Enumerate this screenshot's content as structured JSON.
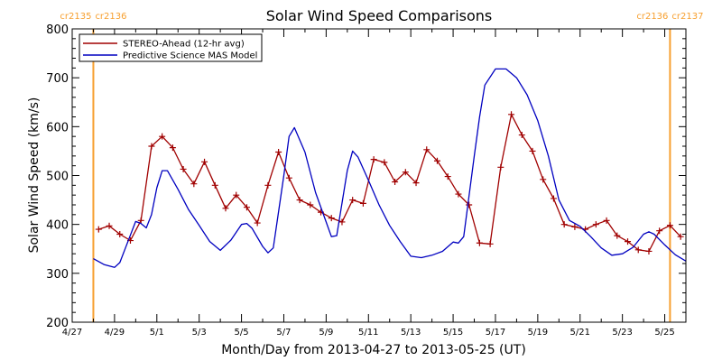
{
  "chart_data": {
    "type": "line",
    "title": "Solar Wind Speed Comparisons",
    "xlabel": "Month/Day from 2013-04-27 to 2013-05-25 (UT)",
    "ylabel": "Solar Wind Speed (km/s)",
    "xlim": [
      "2013-04-27",
      "2013-05-26"
    ],
    "ylim": [
      200,
      800
    ],
    "y_ticks": [
      200,
      300,
      400,
      500,
      600,
      700,
      800
    ],
    "x_ticks": [
      {
        "date": "2013-04-27",
        "label": "4/27"
      },
      {
        "date": "2013-04-29",
        "label": "4/29"
      },
      {
        "date": "2013-05-01",
        "label": "5/1"
      },
      {
        "date": "2013-05-03",
        "label": "5/3"
      },
      {
        "date": "2013-05-05",
        "label": "5/5"
      },
      {
        "date": "2013-05-07",
        "label": "5/7"
      },
      {
        "date": "2013-05-09",
        "label": "5/9"
      },
      {
        "date": "2013-05-11",
        "label": "5/11"
      },
      {
        "date": "2013-05-13",
        "label": "5/13"
      },
      {
        "date": "2013-05-15",
        "label": "5/15"
      },
      {
        "date": "2013-05-17",
        "label": "5/17"
      },
      {
        "date": "2013-05-19",
        "label": "5/19"
      },
      {
        "date": "2013-05-21",
        "label": "5/21"
      },
      {
        "date": "2013-05-23",
        "label": "5/23"
      },
      {
        "date": "2013-05-25",
        "label": "5/25"
      }
    ],
    "grid": false,
    "legend": "top-left",
    "carrington_markers": [
      {
        "date": "2013-04-28 00:00",
        "label_left": "cr2135",
        "label_right": "cr2136",
        "color": "#f7a030"
      },
      {
        "date": "2013-05-25 06:00",
        "label_left": "cr2136",
        "label_right": "cr2137",
        "color": "#f7a030"
      }
    ],
    "series": [
      {
        "name": "STEREO-Ahead (12-hr avg)",
        "color": "#a00000",
        "marker": "plus",
        "points": [
          [
            "2013-04-28 06:00",
            390
          ],
          [
            "2013-04-28 18:00",
            397
          ],
          [
            "2013-04-29 06:00",
            380
          ],
          [
            "2013-04-29 18:00",
            367
          ],
          [
            "2013-04-30 06:00",
            408
          ],
          [
            "2013-04-30 18:00",
            560
          ],
          [
            "2013-05-01 06:00",
            580
          ],
          [
            "2013-05-01 18:00",
            557
          ],
          [
            "2013-05-02 06:00",
            513
          ],
          [
            "2013-05-02 18:00",
            483
          ],
          [
            "2013-05-03 06:00",
            528
          ],
          [
            "2013-05-03 18:00",
            480
          ],
          [
            "2013-05-04 06:00",
            433
          ],
          [
            "2013-05-04 18:00",
            460
          ],
          [
            "2013-05-05 06:00",
            435
          ],
          [
            "2013-05-05 18:00",
            403
          ],
          [
            "2013-05-06 06:00",
            480
          ],
          [
            "2013-05-06 18:00",
            548
          ],
          [
            "2013-05-07 06:00",
            495
          ],
          [
            "2013-05-07 18:00",
            450
          ],
          [
            "2013-05-08 06:00",
            440
          ],
          [
            "2013-05-08 18:00",
            425
          ],
          [
            "2013-05-09 06:00",
            413
          ],
          [
            "2013-05-09 18:00",
            405
          ],
          [
            "2013-05-10 06:00",
            450
          ],
          [
            "2013-05-10 18:00",
            443
          ],
          [
            "2013-05-11 06:00",
            533
          ],
          [
            "2013-05-11 18:00",
            527
          ],
          [
            "2013-05-12 06:00",
            487
          ],
          [
            "2013-05-12 18:00",
            507
          ],
          [
            "2013-05-13 06:00",
            485
          ],
          [
            "2013-05-13 18:00",
            553
          ],
          [
            "2013-05-14 06:00",
            530
          ],
          [
            "2013-05-14 18:00",
            498
          ],
          [
            "2013-05-15 06:00",
            462
          ],
          [
            "2013-05-15 18:00",
            440
          ],
          [
            "2013-05-16 06:00",
            362
          ],
          [
            "2013-05-16 18:00",
            360
          ],
          [
            "2013-05-17 06:00",
            517
          ],
          [
            "2013-05-17 18:00",
            625
          ],
          [
            "2013-05-18 06:00",
            583
          ],
          [
            "2013-05-18 18:00",
            550
          ],
          [
            "2013-05-19 06:00",
            492
          ],
          [
            "2013-05-19 18:00",
            453
          ],
          [
            "2013-05-20 06:00",
            400
          ],
          [
            "2013-05-20 18:00",
            395
          ],
          [
            "2013-05-21 06:00",
            390
          ],
          [
            "2013-05-21 18:00",
            400
          ],
          [
            "2013-05-22 06:00",
            408
          ],
          [
            "2013-05-22 18:00",
            377
          ],
          [
            "2013-05-23 06:00",
            365
          ],
          [
            "2013-05-23 18:00",
            348
          ],
          [
            "2013-05-24 06:00",
            345
          ],
          [
            "2013-05-24 18:00",
            387
          ],
          [
            "2013-05-25 06:00",
            398
          ],
          [
            "2013-05-25 18:00",
            375
          ]
        ]
      },
      {
        "name": "Predictive Science MAS Model",
        "color": "#0000c0",
        "marker": "none",
        "points": [
          [
            "2013-04-28 00:00",
            330
          ],
          [
            "2013-04-28 12:00",
            318
          ],
          [
            "2013-04-29 00:00",
            312
          ],
          [
            "2013-04-29 06:00",
            322
          ],
          [
            "2013-04-29 12:00",
            350
          ],
          [
            "2013-04-30 00:00",
            406
          ],
          [
            "2013-04-30 06:00",
            402
          ],
          [
            "2013-04-30 12:00",
            393
          ],
          [
            "2013-04-30 18:00",
            420
          ],
          [
            "2013-05-01 00:00",
            475
          ],
          [
            "2013-05-01 06:00",
            510
          ],
          [
            "2013-05-01 12:00",
            510
          ],
          [
            "2013-05-02 00:00",
            472
          ],
          [
            "2013-05-02 12:00",
            430
          ],
          [
            "2013-05-03 00:00",
            398
          ],
          [
            "2013-05-03 12:00",
            365
          ],
          [
            "2013-05-04 00:00",
            347
          ],
          [
            "2013-05-04 12:00",
            368
          ],
          [
            "2013-05-05 00:00",
            400
          ],
          [
            "2013-05-05 06:00",
            402
          ],
          [
            "2013-05-05 12:00",
            392
          ],
          [
            "2013-05-06 00:00",
            355
          ],
          [
            "2013-05-06 06:00",
            342
          ],
          [
            "2013-05-06 12:00",
            352
          ],
          [
            "2013-05-07 00:00",
            500
          ],
          [
            "2013-05-07 06:00",
            580
          ],
          [
            "2013-05-07 12:00",
            598
          ],
          [
            "2013-05-08 00:00",
            548
          ],
          [
            "2013-05-08 12:00",
            465
          ],
          [
            "2013-05-09 00:00",
            405
          ],
          [
            "2013-05-09 06:00",
            375
          ],
          [
            "2013-05-09 12:00",
            377
          ],
          [
            "2013-05-10 00:00",
            510
          ],
          [
            "2013-05-10 06:00",
            550
          ],
          [
            "2013-05-10 12:00",
            538
          ],
          [
            "2013-05-11 00:00",
            490
          ],
          [
            "2013-05-11 12:00",
            440
          ],
          [
            "2013-05-12 00:00",
            398
          ],
          [
            "2013-05-12 12:00",
            365
          ],
          [
            "2013-05-13 00:00",
            335
          ],
          [
            "2013-05-13 12:00",
            332
          ],
          [
            "2013-05-14 00:00",
            337
          ],
          [
            "2013-05-14 12:00",
            345
          ],
          [
            "2013-05-15 00:00",
            364
          ],
          [
            "2013-05-15 06:00",
            362
          ],
          [
            "2013-05-15 12:00",
            375
          ],
          [
            "2013-05-16 00:00",
            540
          ],
          [
            "2013-05-16 06:00",
            620
          ],
          [
            "2013-05-16 12:00",
            685
          ],
          [
            "2013-05-17 00:00",
            718
          ],
          [
            "2013-05-17 12:00",
            718
          ],
          [
            "2013-05-18 00:00",
            700
          ],
          [
            "2013-05-18 12:00",
            665
          ],
          [
            "2013-05-19 00:00",
            612
          ],
          [
            "2013-05-19 12:00",
            540
          ],
          [
            "2013-05-20 00:00",
            450
          ],
          [
            "2013-05-20 12:00",
            408
          ],
          [
            "2013-05-21 00:00",
            396
          ],
          [
            "2013-05-21 12:00",
            375
          ],
          [
            "2013-05-22 00:00",
            352
          ],
          [
            "2013-05-22 12:00",
            337
          ],
          [
            "2013-05-23 00:00",
            340
          ],
          [
            "2013-05-23 12:00",
            353
          ],
          [
            "2013-05-24 00:00",
            380
          ],
          [
            "2013-05-24 06:00",
            385
          ],
          [
            "2013-05-24 12:00",
            380
          ],
          [
            "2013-05-25 00:00",
            358
          ],
          [
            "2013-05-25 12:00",
            338
          ],
          [
            "2013-05-26 00:00",
            325
          ]
        ]
      }
    ]
  }
}
